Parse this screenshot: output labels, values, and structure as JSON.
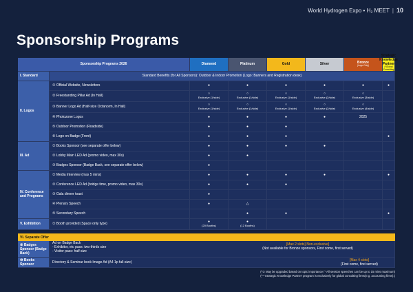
{
  "header": {
    "title": "World Hydrogen Expo • H₂ MEET",
    "page": "10"
  },
  "page_title": "Sponsorship Programs",
  "table": {
    "header_label": "Sponsorship Programs 2026",
    "columns": {
      "diamond": "Diamond",
      "platinum": "Platinum",
      "gold": "Gold",
      "silver": "Silver",
      "bronze": "Bronze",
      "bronze_sub": "(Logo Only)",
      "strategic": "Strategic Knowledge Partner",
      "strategic_sub": "(*Global Consulting only)"
    },
    "standard": {
      "label": "I. Standard",
      "desc": "Standard Benefits (for All Sponsors): Outdoor & Indoor Promotion (Logo: Banners and Registration desk)"
    },
    "cats": {
      "logos": "II. Logos",
      "ad": "III. Ad",
      "conference": "IV. Conference and Programs",
      "exhibition": "V. Exhibition"
    },
    "items": {
      "i1": "① Official Website, Newsletters",
      "i2": "② Freestanding Pillar Ad (In Hall)",
      "i3": "③ Banner Logo Ad (Half-size Octanorm, In Hall)",
      "i4": "④ Photozone Logos",
      "i5": "⑤ Outdoor Promotion (Roadside)",
      "i6": "⑥ Logo on Badge (Front)",
      "i7": "① Books Sponsor (see separate offer below)",
      "i8": "② Lobby Main LED Ad (promo video, max 30s)",
      "i9": "③ Badges Sponsor (Badge Back, see separate offer below)",
      "i10": "① Media Interview (max 5 mins)",
      "i11": "② Conference LED Ad (bridge time, promo video, max 30s)",
      "i12": "③ Gala dinner toast",
      "i13": "④ Plenary Speech",
      "i14": "⑤ Secondary Speech",
      "i15": "① Booth provided (Space only type)"
    },
    "marks": {
      "dot": "●",
      "circle": "○",
      "triangle": "△",
      "x1": "Exclusive (1/side)",
      "x2": "Exclusive (2/side)",
      "x3": "Exclusive (3/side)",
      "x4": "Exclusive (4/side)",
      "year": "2025",
      "booth20": "(20 Booths)",
      "booth12": "(12 Booths)"
    }
  },
  "offer": {
    "title": "VI. Separate Offer",
    "badges_label": "⑨ Badges Sponsor (Badge Back)",
    "badges_desc1": "Ad on Badge Back",
    "badges_desc2": "- Exhibitor, etc pass: two-thirds size",
    "badges_desc3": "- Visitor pass: half size",
    "badges_right1": "[Max 2 slots] Non-exclusive]",
    "badges_right2": "(Not available for Bronze sponsors, First come, first served)",
    "books_label": "⑩ Books Sponsor",
    "books_desc": "Directory & Seminar book Image Ad (A4 1p full-size)",
    "books_right1": "[Max 4 slots]",
    "books_right2": "(First come, first served)"
  },
  "footnotes": {
    "f1": "(*① May be upgraded based on topic importance / *All session speeches can be up to 15 mins maximum)",
    "f2": "(** 'Strategic Knowledge Partner' program is exclusively for global consulting firms(e.g. accounting firms).)"
  }
}
